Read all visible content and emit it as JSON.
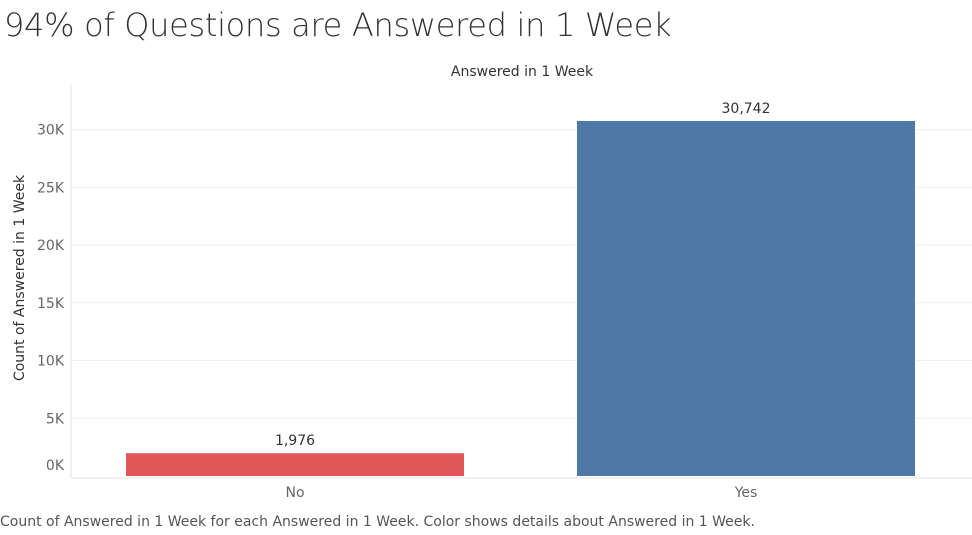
{
  "page": {
    "title": "94% of Questions are Answered in 1 Week",
    "caption": "Count of Answered in 1 Week for each Answered in 1 Week.  Color shows details about Answered in 1 Week."
  },
  "chart_data": {
    "type": "bar",
    "title": "Answered in 1 Week",
    "xlabel": "",
    "ylabel": "Count of Answered in 1 Week",
    "categories": [
      "No",
      "Yes"
    ],
    "values": [
      1976,
      30742
    ],
    "value_labels": [
      "1,976",
      "30,742"
    ],
    "colors": [
      "#e15759",
      "#4e79a7"
    ],
    "ylim": [
      0,
      33000
    ],
    "yticks": [
      0,
      5000,
      10000,
      15000,
      20000,
      25000,
      30000
    ],
    "ytick_labels": [
      "0K",
      "5K",
      "10K",
      "15K",
      "20K",
      "25K",
      "30K"
    ],
    "grid": true,
    "legend": "none"
  }
}
